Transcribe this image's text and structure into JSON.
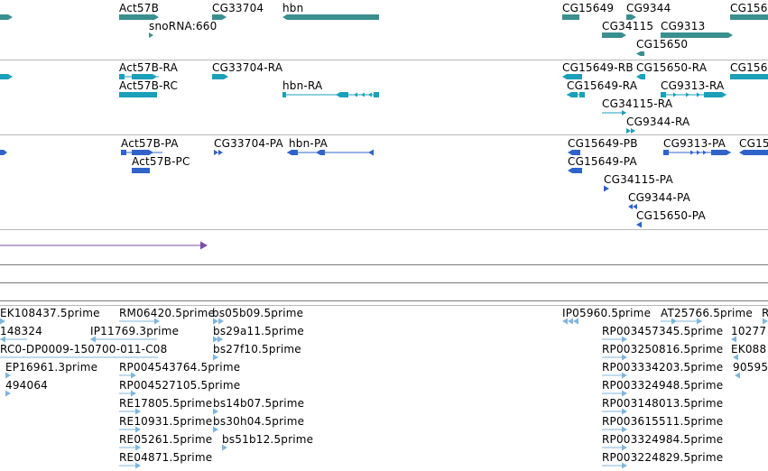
{
  "colors": {
    "gene": "#3a8f8f",
    "transcript": "#1aa0b8",
    "protein": "#2f63c9",
    "alignment": "#7a4fa8",
    "est": "#7fb6dc",
    "separator": "#b8b8b8"
  },
  "tracks": {
    "genes": {
      "labels": [
        "Act57B",
        "CG33704",
        "hbn",
        "CG15649",
        "CG9344",
        "CG156",
        "snoRNA:660",
        "CG34115",
        "CG9313",
        "CG15650"
      ]
    },
    "transcripts": {
      "labels": [
        "Act57B-RA",
        "CG33704-RA",
        "CG15649-RB",
        "CG15650-RA",
        "CG156",
        "Act57B-RC",
        "hbn-RA",
        "CG15649-RA",
        "CG9313-RA",
        "CG34115-RA",
        "CG9344-RA"
      ]
    },
    "proteins": {
      "labels": [
        "Act57B-PA",
        "CG33704-PA",
        "hbn-PA",
        "CG15649-PB",
        "CG9313-PA",
        "CG15",
        "Act57B-PC",
        "CG15649-PA",
        "CG34115-PA",
        "CG9344-PA",
        "CG15650-PA"
      ]
    },
    "ests": {
      "labels": [
        "EK108437.5prime",
        "RM06420.5prime",
        "bs05b09.5prime",
        "IP05960.5prime",
        "AT25766.5prime",
        "R",
        "148324",
        "IP11769.3prime",
        "bs29a11.5prime",
        "RP003457345.5prime",
        "10277",
        "RC0-DP0009-150700-011-C08",
        "bs27f10.5prime",
        "RP003250816.5prime",
        "EK088",
        "EP16961.3prime",
        "RP004543764.5prime",
        "RP003334203.5prime",
        "90595",
        "494064",
        "RP004527105.5prime",
        "RP003324948.5prime",
        "RE17805.5prime",
        "bs14b07.5prime",
        "RP003148013.5prime",
        "RE10931.5prime",
        "bs30h04.5prime",
        "RP003615511.5prime",
        "RE05261.5prime",
        "bs51b12.5prime",
        "RP003324984.5prime",
        "RE04871.5prime",
        "RP003224829.5prime"
      ]
    }
  }
}
